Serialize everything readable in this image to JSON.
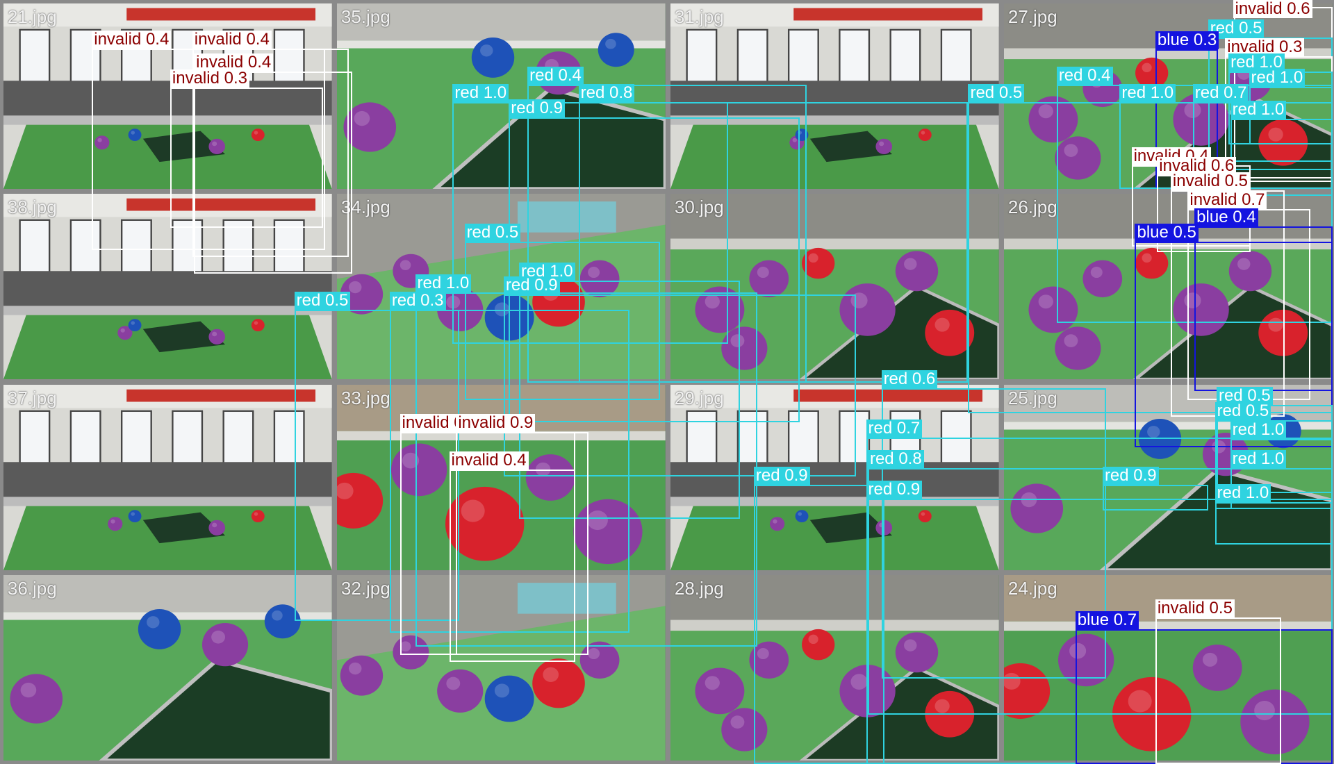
{
  "colors": {
    "red": "#2fd3e0",
    "blue": "#1414e0",
    "invalid": "#ffffff",
    "red_text": "#ffffff",
    "blue_text": "#ffffff",
    "invalid_text": "#8b0000"
  },
  "tiles": [
    {
      "name": "21.jpg",
      "scene": "hall"
    },
    {
      "name": "35.jpg",
      "scene": "mat"
    },
    {
      "name": "31.jpg",
      "scene": "hall"
    },
    {
      "name": "27.jpg",
      "scene": "balls"
    },
    {
      "name": "38.jpg",
      "scene": "hall"
    },
    {
      "name": "34.jpg",
      "scene": "field"
    },
    {
      "name": "30.jpg",
      "scene": "balls"
    },
    {
      "name": "26.jpg",
      "scene": "balls"
    },
    {
      "name": "37.jpg",
      "scene": "hall"
    },
    {
      "name": "33.jpg",
      "scene": "closeup"
    },
    {
      "name": "29.jpg",
      "scene": "hall"
    },
    {
      "name": "25.jpg",
      "scene": "mat"
    },
    {
      "name": "36.jpg",
      "scene": "mat"
    },
    {
      "name": "32.jpg",
      "scene": "field"
    },
    {
      "name": "28.jpg",
      "scene": "balls"
    },
    {
      "name": "24.jpg",
      "scene": "closeup"
    }
  ],
  "detections": [
    {
      "cls": "invalid",
      "label": "invalid 0.4"
    },
    {
      "cls": "invalid",
      "label": "invalid 0.4"
    },
    {
      "cls": "invalid",
      "label": "invalid 0.4"
    },
    {
      "cls": "invalid",
      "label": "invalid 0.3"
    },
    {
      "cls": "red",
      "label": "red 0.4"
    },
    {
      "cls": "red",
      "label": "red 1.0"
    },
    {
      "cls": "red",
      "label": "red 0.8"
    },
    {
      "cls": "red",
      "label": "red 0.9"
    },
    {
      "cls": "red",
      "label": "red 0.5"
    },
    {
      "cls": "invalid",
      "label": "invalid 0.6"
    },
    {
      "cls": "red",
      "label": "red 0.5"
    },
    {
      "cls": "blue",
      "label": "blue 0.3"
    },
    {
      "cls": "invalid",
      "label": "invalid 0.3"
    },
    {
      "cls": "red",
      "label": "red 1.0"
    },
    {
      "cls": "red",
      "label": "red 1.0"
    },
    {
      "cls": "red",
      "label": "red 0.4"
    },
    {
      "cls": "red",
      "label": "red 1.0"
    },
    {
      "cls": "red",
      "label": "red 0.7"
    },
    {
      "cls": "red",
      "label": "red 1.0"
    },
    {
      "cls": "invalid",
      "label": "invalid 0.4"
    },
    {
      "cls": "invalid",
      "label": "invalid 0.6"
    },
    {
      "cls": "invalid",
      "label": "invalid 0.5"
    },
    {
      "cls": "invalid",
      "label": "invalid 0.7"
    },
    {
      "cls": "blue",
      "label": "blue 0.4"
    },
    {
      "cls": "blue",
      "label": "blue 0.5"
    },
    {
      "cls": "red",
      "label": "red 0.5"
    },
    {
      "cls": "red",
      "label": "red 1.0"
    },
    {
      "cls": "red",
      "label": "red 1.0"
    },
    {
      "cls": "red",
      "label": "red 0.9"
    },
    {
      "cls": "red",
      "label": "red 0.5"
    },
    {
      "cls": "red",
      "label": "red 0.3"
    },
    {
      "cls": "red",
      "label": "red 0.6"
    },
    {
      "cls": "red",
      "label": "red 0.7"
    },
    {
      "cls": "red",
      "label": "red 0.8"
    },
    {
      "cls": "red",
      "label": "red 0.9"
    },
    {
      "cls": "red",
      "label": "red 0.9"
    },
    {
      "cls": "invalid",
      "label": "invalid 0.9"
    },
    {
      "cls": "invalid",
      "label": "invalid 0.9"
    },
    {
      "cls": "invalid",
      "label": "invalid 0.4"
    },
    {
      "cls": "red",
      "label": "red 0.5"
    },
    {
      "cls": "red",
      "label": "red 0.5"
    },
    {
      "cls": "red",
      "label": "red 1.0"
    },
    {
      "cls": "red",
      "label": "red 1.0"
    },
    {
      "cls": "red",
      "label": "red 0.9"
    },
    {
      "cls": "red",
      "label": "red 1.0"
    },
    {
      "cls": "blue",
      "label": "blue 0.7"
    },
    {
      "cls": "invalid",
      "label": "invalid 0.5"
    }
  ]
}
